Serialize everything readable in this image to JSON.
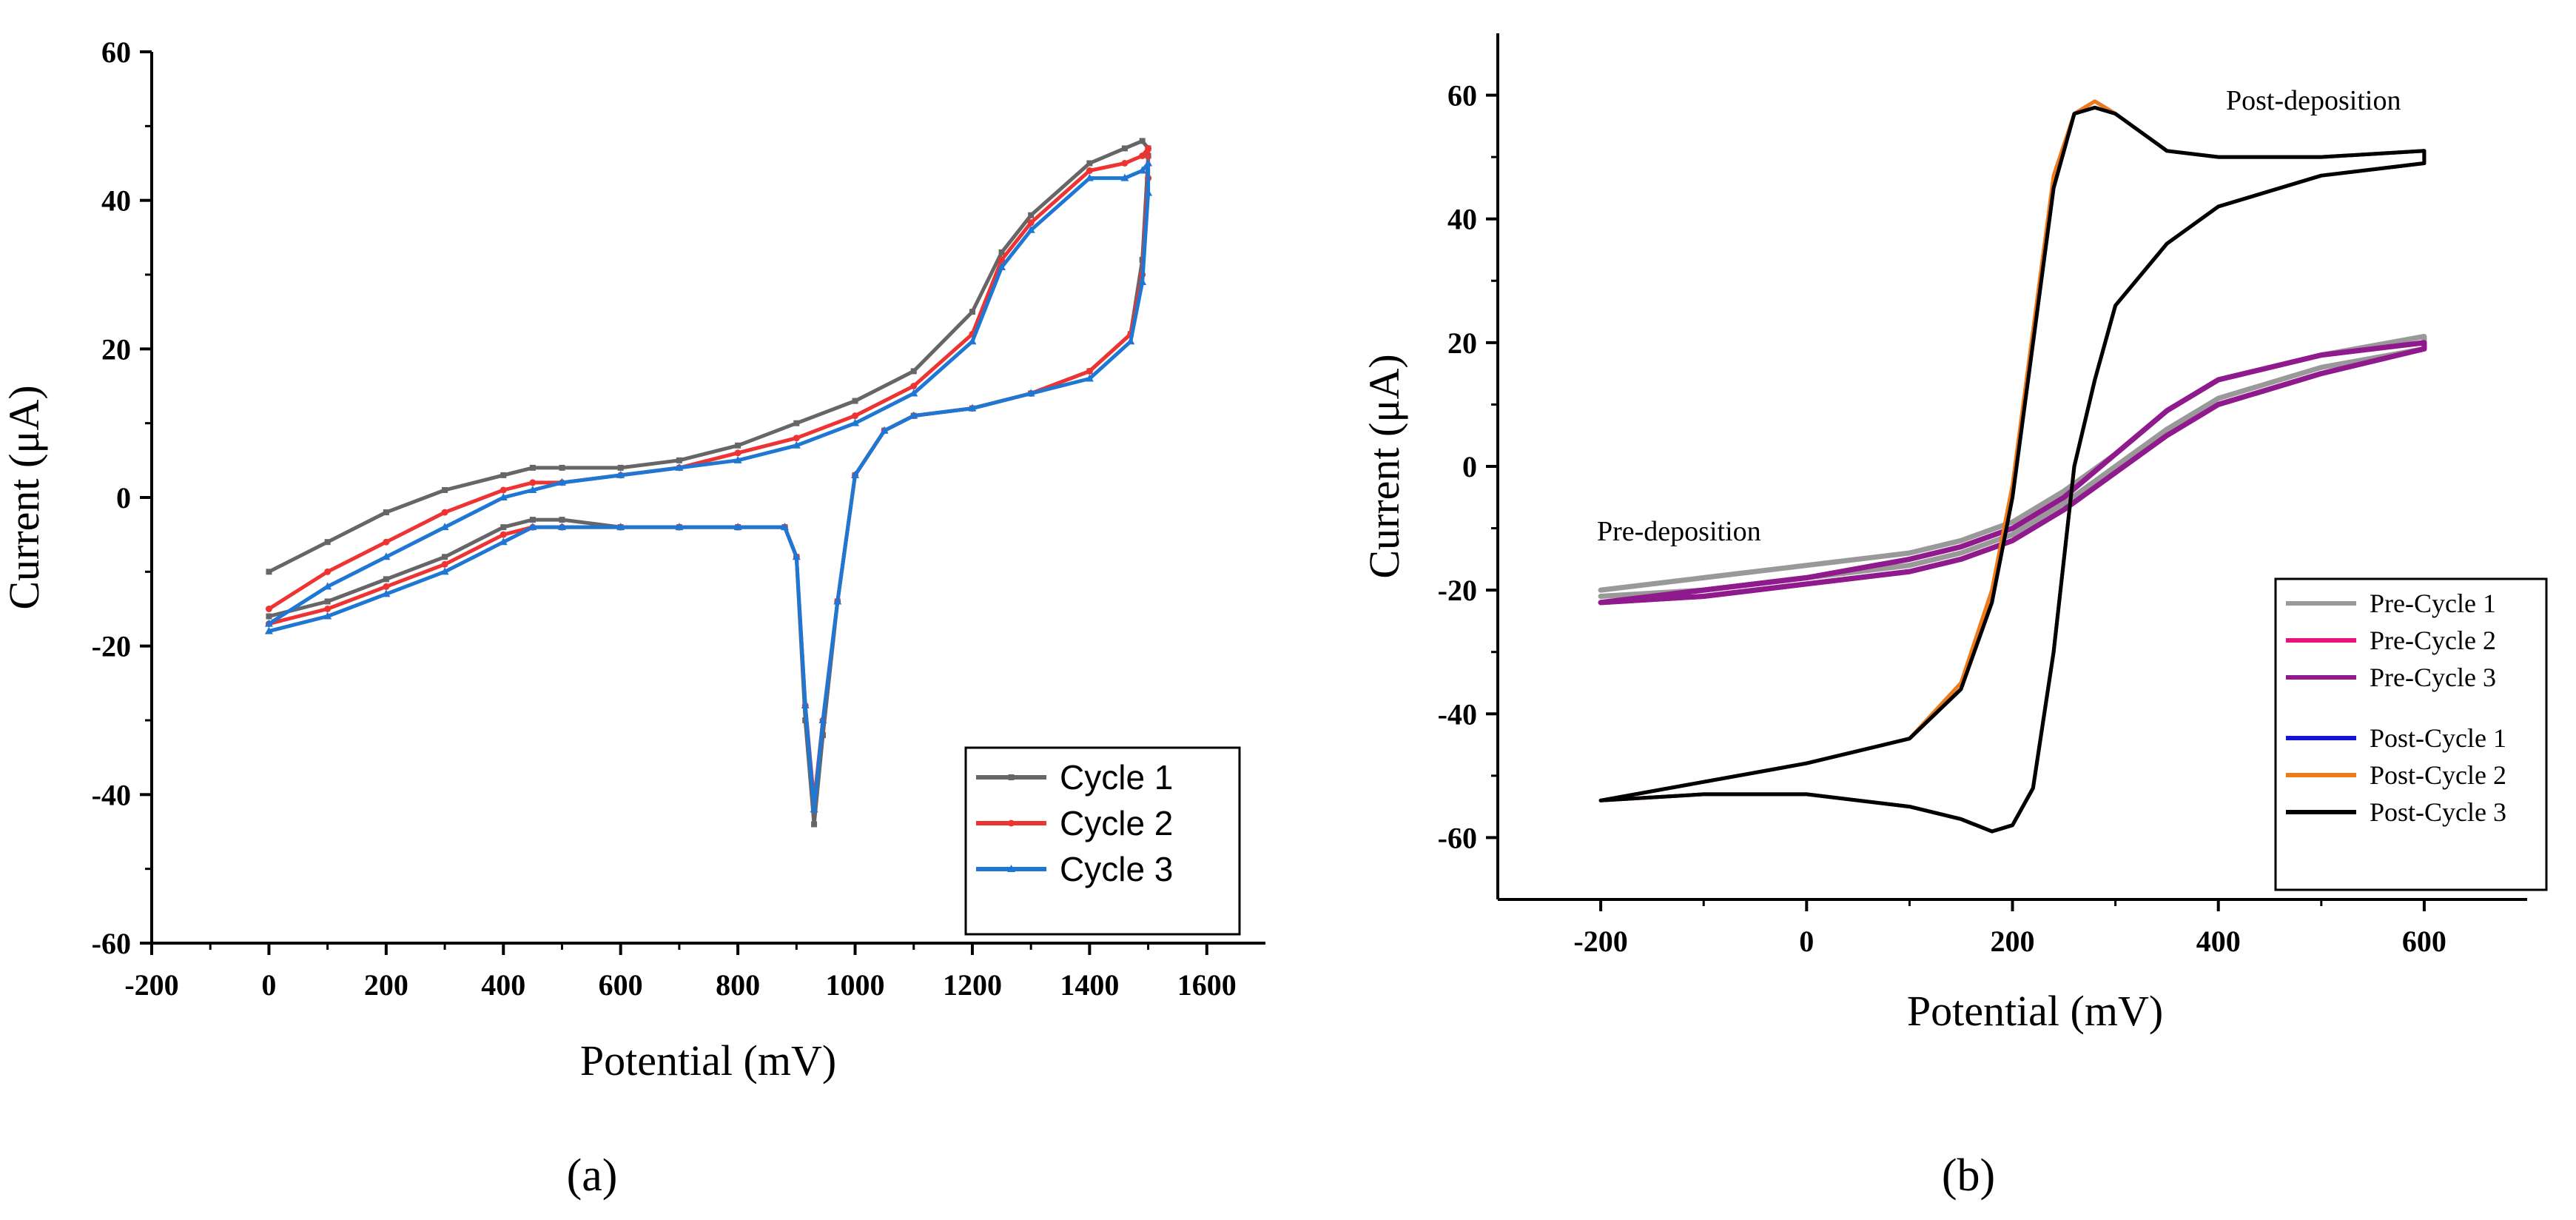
{
  "chart_data": [
    {
      "id": "a",
      "type": "line",
      "panel_label": "(a)",
      "xlabel": "Potential (mV)",
      "ylabel": "Current (μA)",
      "xlim": [
        -200,
        1700
      ],
      "ylim": [
        -60,
        60
      ],
      "xticks": [
        -200,
        0,
        200,
        400,
        600,
        800,
        1000,
        1200,
        1400,
        1600
      ],
      "yticks": [
        -60,
        -40,
        -20,
        0,
        20,
        40,
        60
      ],
      "legend_position": "bottom-right",
      "series": [
        {
          "name": "Cycle 1",
          "color": "#666666",
          "marker": "square",
          "x": [
            0,
            100,
            200,
            300,
            400,
            450,
            500,
            600,
            700,
            800,
            900,
            1000,
            1100,
            1200,
            1250,
            1300,
            1400,
            1460,
            1490,
            1500,
            1500,
            1490,
            1470,
            1400,
            1300,
            1200,
            1100,
            1050,
            1000,
            970,
            945,
            930,
            915,
            900,
            880,
            800,
            700,
            600,
            500,
            450,
            400,
            300,
            200,
            100,
            0
          ],
          "y": [
            -10,
            -6,
            -2,
            1,
            3,
            4,
            4,
            4,
            5,
            7,
            10,
            13,
            17,
            25,
            33,
            38,
            45,
            47,
            48,
            47,
            46,
            32,
            22,
            17,
            14,
            12,
            11,
            9,
            3,
            -14,
            -32,
            -44,
            -30,
            -8,
            -4,
            -4,
            -4,
            -4,
            -3,
            -3,
            -4,
            -8,
            -11,
            -14,
            -16
          ]
        },
        {
          "name": "Cycle 2",
          "color": "#ee3333",
          "marker": "circle",
          "x": [
            0,
            100,
            200,
            300,
            400,
            450,
            500,
            600,
            700,
            800,
            900,
            1000,
            1100,
            1200,
            1250,
            1300,
            1400,
            1460,
            1490,
            1500,
            1500,
            1490,
            1470,
            1400,
            1300,
            1200,
            1100,
            1050,
            1000,
            970,
            945,
            930,
            915,
            900,
            880,
            800,
            700,
            600,
            500,
            450,
            400,
            300,
            200,
            100,
            0
          ],
          "y": [
            -15,
            -10,
            -6,
            -2,
            1,
            2,
            2,
            3,
            4,
            6,
            8,
            11,
            15,
            22,
            32,
            37,
            44,
            45,
            46,
            47,
            43,
            30,
            22,
            17,
            14,
            12,
            11,
            9,
            3,
            -14,
            -30,
            -41,
            -28,
            -8,
            -4,
            -4,
            -4,
            -4,
            -4,
            -4,
            -5,
            -9,
            -12,
            -15,
            -17
          ]
        },
        {
          "name": "Cycle 3",
          "color": "#1f77d4",
          "marker": "triangle",
          "x": [
            0,
            100,
            200,
            300,
            400,
            450,
            500,
            600,
            700,
            800,
            900,
            1000,
            1100,
            1200,
            1250,
            1300,
            1400,
            1460,
            1490,
            1500,
            1500,
            1490,
            1470,
            1400,
            1300,
            1200,
            1100,
            1050,
            1000,
            970,
            945,
            930,
            915,
            900,
            880,
            800,
            700,
            600,
            500,
            450,
            400,
            300,
            200,
            100,
            0
          ],
          "y": [
            -17,
            -12,
            -8,
            -4,
            0,
            1,
            2,
            3,
            4,
            5,
            7,
            10,
            14,
            21,
            31,
            36,
            43,
            43,
            44,
            45,
            41,
            29,
            21,
            16,
            14,
            12,
            11,
            9,
            3,
            -14,
            -30,
            -42,
            -28,
            -8,
            -4,
            -4,
            -4,
            -4,
            -4,
            -4,
            -6,
            -10,
            -13,
            -16,
            -18
          ]
        }
      ]
    },
    {
      "id": "b",
      "type": "line",
      "panel_label": "(b)",
      "xlabel": "Potential (mV)",
      "ylabel": "Current (μA)",
      "xlim": [
        -300,
        700
      ],
      "ylim": [
        -70,
        70
      ],
      "xticks": [
        -200,
        0,
        200,
        400,
        600
      ],
      "yticks": [
        -60,
        -40,
        -20,
        0,
        20,
        40,
        60
      ],
      "legend_position": "bottom-right",
      "annotations": [
        "Post-deposition",
        "Pre-deposition"
      ],
      "series": [
        {
          "name": "Pre-Cycle 1",
          "color": "#999999",
          "group": "pre",
          "x": [
            -200,
            -100,
            0,
            100,
            150,
            200,
            250,
            300,
            350,
            400,
            500,
            600,
            600,
            500,
            400,
            350,
            300,
            250,
            200,
            150,
            100,
            0,
            -100,
            -200
          ],
          "y": [
            -20,
            -18,
            -16,
            -14,
            -12,
            -9,
            -4,
            2,
            9,
            14,
            18,
            21,
            19,
            16,
            11,
            6,
            0,
            -6,
            -11,
            -14,
            -16,
            -18,
            -20,
            -21
          ]
        },
        {
          "name": "Pre-Cycle 2",
          "color": "#e8127c",
          "group": "pre",
          "x": [
            -200,
            -100,
            0,
            100,
            150,
            200,
            250,
            300,
            350,
            400,
            500,
            600,
            600,
            500,
            400,
            350,
            300,
            250,
            200,
            150,
            100,
            0,
            -100,
            -200
          ],
          "y": [
            -22,
            -20,
            -18,
            -15,
            -13,
            -10,
            -5,
            2,
            9,
            14,
            18,
            20,
            19,
            15,
            10,
            5,
            -1,
            -7,
            -12,
            -15,
            -17,
            -19,
            -21,
            -22
          ]
        },
        {
          "name": "Pre-Cycle 3",
          "color": "#8e1a8e",
          "group": "pre",
          "x": [
            -200,
            -100,
            0,
            100,
            150,
            200,
            250,
            300,
            350,
            400,
            500,
            600,
            600,
            500,
            400,
            350,
            300,
            250,
            200,
            150,
            100,
            0,
            -100,
            -200
          ],
          "y": [
            -22,
            -20,
            -18,
            -15,
            -13,
            -10,
            -5,
            2,
            9,
            14,
            18,
            20,
            19,
            15,
            10,
            5,
            -1,
            -7,
            -12,
            -15,
            -17,
            -19,
            -21,
            -22
          ]
        },
        {
          "name": "Post-Cycle 1",
          "color": "#1414d8",
          "group": "post",
          "x": [
            -200,
            -100,
            0,
            100,
            150,
            180,
            200,
            220,
            240,
            260,
            280,
            300,
            350,
            400,
            500,
            600,
            600,
            500,
            400,
            350,
            300,
            280,
            260,
            240,
            220,
            200,
            180,
            150,
            100,
            0,
            -100,
            -200
          ],
          "y": [
            -54,
            -51,
            -48,
            -44,
            -36,
            -22,
            -5,
            20,
            45,
            57,
            59,
            57,
            51,
            50,
            50,
            51,
            49,
            47,
            42,
            36,
            26,
            14,
            0,
            -30,
            -52,
            -58,
            -59,
            -57,
            -55,
            -53,
            -53,
            -54
          ]
        },
        {
          "name": "Post-Cycle 2",
          "color": "#f07a1a",
          "group": "post",
          "x": [
            -200,
            -100,
            0,
            100,
            150,
            180,
            200,
            220,
            240,
            260,
            280,
            300,
            350,
            400,
            500,
            600,
            600,
            500,
            400,
            350,
            300,
            280,
            260,
            240,
            220,
            200,
            180,
            150,
            100,
            0,
            -100,
            -200
          ],
          "y": [
            -54,
            -51,
            -48,
            -44,
            -35,
            -20,
            -3,
            22,
            47,
            57,
            59,
            57,
            51,
            50,
            50,
            51,
            49,
            47,
            42,
            36,
            26,
            14,
            0,
            -30,
            -52,
            -58,
            -59,
            -57,
            -55,
            -53,
            -53,
            -54
          ]
        },
        {
          "name": "Post-Cycle 3",
          "color": "#000000",
          "group": "post",
          "x": [
            -200,
            -100,
            0,
            100,
            150,
            180,
            200,
            220,
            240,
            260,
            280,
            300,
            350,
            400,
            500,
            600,
            600,
            500,
            400,
            350,
            300,
            280,
            260,
            240,
            220,
            200,
            180,
            150,
            100,
            0,
            -100,
            -200
          ],
          "y": [
            -54,
            -51,
            -48,
            -44,
            -36,
            -22,
            -5,
            20,
            45,
            57,
            58,
            57,
            51,
            50,
            50,
            51,
            49,
            47,
            42,
            36,
            26,
            14,
            0,
            -30,
            -52,
            -58,
            -59,
            -57,
            -55,
            -53,
            -53,
            -54
          ]
        }
      ]
    }
  ]
}
